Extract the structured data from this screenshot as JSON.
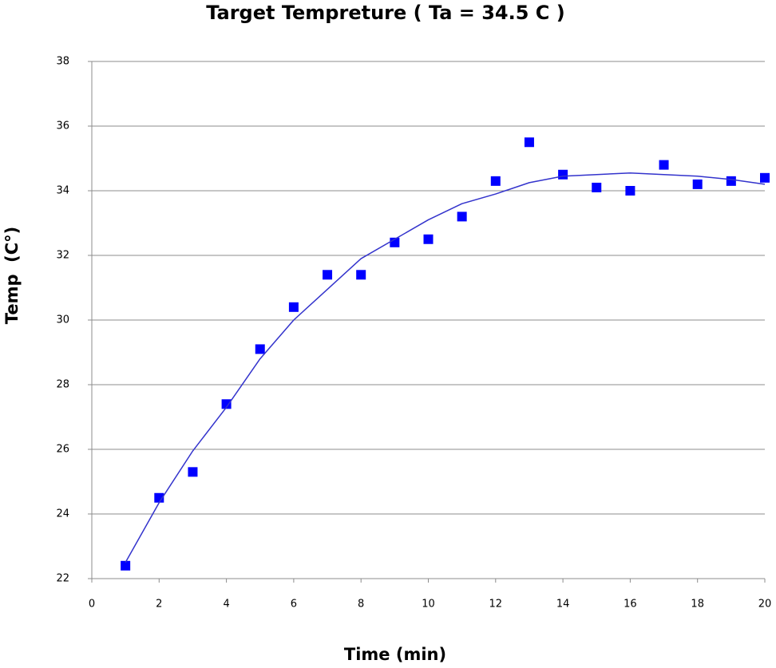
{
  "chart_data": {
    "type": "scatter",
    "title": "Target Tempreture ( Ta = 34.5 C )",
    "x_label": "Time (min)",
    "y_label": "Temp  (C°)",
    "xlim": [
      0,
      20
    ],
    "xticks": [
      0,
      2,
      4,
      6,
      8,
      10,
      12,
      14,
      16,
      18,
      20
    ],
    "ylim": [
      22,
      38
    ],
    "yticks": [
      22,
      24,
      26,
      28,
      30,
      32,
      34,
      36,
      38
    ],
    "grid": true,
    "series": [
      {
        "type": "scatter",
        "marker": "square",
        "color": "#0000ff",
        "x": [
          1,
          2,
          3,
          4,
          5,
          6,
          7,
          8,
          9,
          10,
          11,
          12,
          13,
          14,
          15,
          16,
          17,
          18,
          19,
          20
        ],
        "values": [
          22.4,
          24.5,
          25.3,
          27.4,
          29.1,
          30.4,
          31.4,
          31.4,
          32.4,
          32.5,
          33.2,
          34.3,
          35.5,
          34.5,
          34.1,
          34.0,
          34.8,
          34.2,
          34.3,
          34.4
        ]
      },
      {
        "type": "line",
        "color": "#3333cc",
        "x": [
          1,
          2,
          3,
          4,
          5,
          6,
          7,
          8,
          9,
          10,
          11,
          12,
          13,
          14,
          15,
          16,
          17,
          18,
          19,
          20
        ],
        "values": [
          22.5,
          24.35,
          25.95,
          27.3,
          28.8,
          30.0,
          30.95,
          31.9,
          32.5,
          33.1,
          33.6,
          33.9,
          34.25,
          34.45,
          34.5,
          34.55,
          34.5,
          34.45,
          34.35,
          34.2
        ]
      }
    ]
  }
}
